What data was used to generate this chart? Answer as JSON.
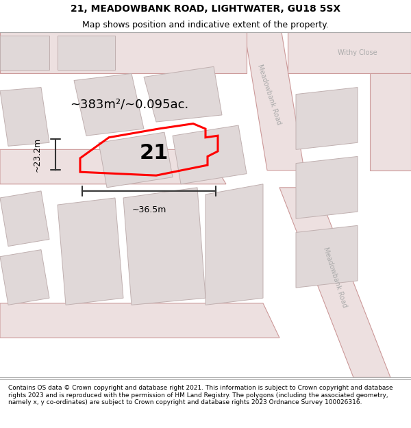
{
  "title": "21, MEADOWBANK ROAD, LIGHTWATER, GU18 5SX",
  "subtitle": "Map shows position and indicative extent of the property.",
  "footer": "Contains OS data © Crown copyright and database right 2021. This information is subject to Crown copyright and database rights 2023 and is reproduced with the permission of HM Land Registry. The polygons (including the associated geometry, namely x, y co-ordinates) are subject to Crown copyright and database rights 2023 Ordnance Survey 100026316.",
  "area_label": "~383m²/~0.095ac.",
  "width_label": "~36.5m",
  "height_label": "~23.2m",
  "property_number": "21",
  "map_bg": "#f2eded",
  "road_fill": "#ede0e0",
  "road_edge": "#cc9999",
  "building_fill": "#e0d8d8",
  "building_edge": "#c0b0b0",
  "property_color": "#ff0000",
  "dim_color": "#333333",
  "title_fontsize": 10,
  "subtitle_fontsize": 9,
  "footer_fontsize": 6.5,
  "area_fontsize": 13,
  "number_fontsize": 22,
  "dim_fontsize": 9,
  "street_fontsize": 7
}
